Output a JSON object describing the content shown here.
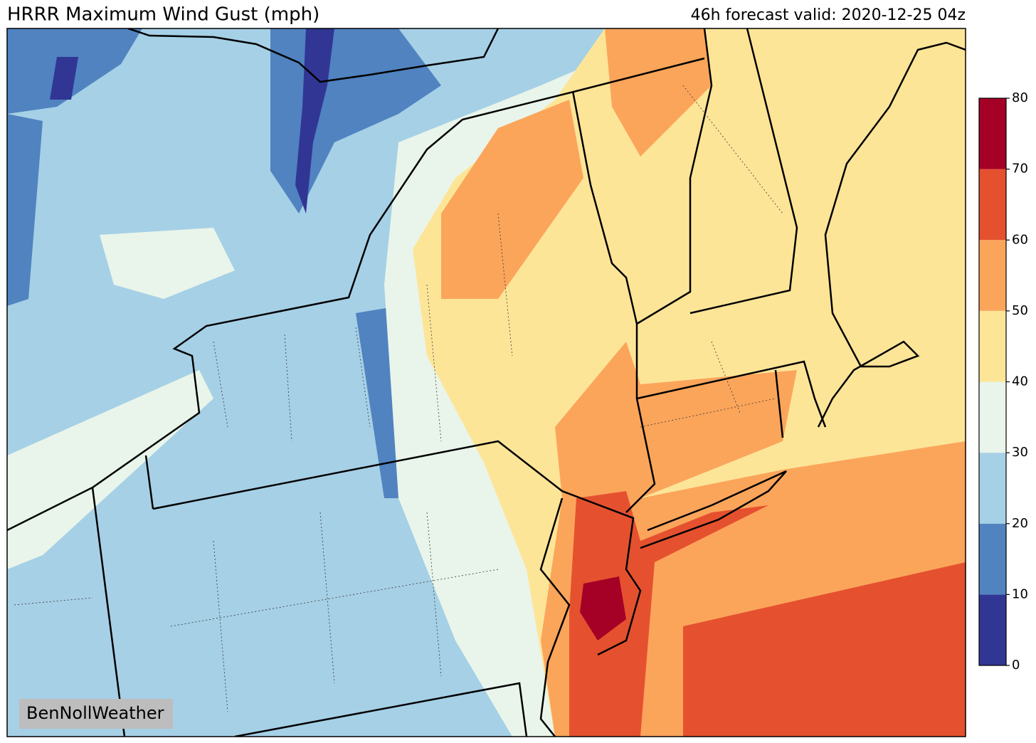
{
  "title": "HRRR Maximum Wind Gust (mph)",
  "subtitle": "46h forecast valid: 2020-12-25 04z",
  "watermark": "BenNollWeather",
  "colorbar": {
    "bins": [
      0,
      10,
      20,
      30,
      40,
      50,
      60,
      70,
      80
    ],
    "colors": [
      "#313695",
      "#5083c0",
      "#a6d0e6",
      "#e9f5ea",
      "#fde598",
      "#fba55b",
      "#e5512f",
      "#a50026"
    ]
  }
}
